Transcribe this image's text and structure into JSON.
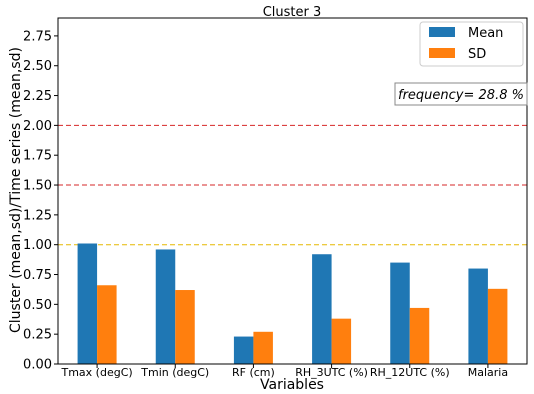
{
  "chart_data": {
    "type": "bar",
    "title": "Cluster 3",
    "xlabel": "Variables",
    "ylabel": "Cluster (mean,sd)/Time series (mean,sd)",
    "categories": [
      "Tmax (degC)",
      "Tmin (degC)",
      "RF (cm)",
      "RH_3UTC (%)",
      "RH_12UTC (%)",
      "Malaria"
    ],
    "series": [
      {
        "name": "Mean",
        "color": "#1f77b4",
        "values": [
          1.01,
          0.96,
          0.23,
          0.92,
          0.85,
          0.8
        ]
      },
      {
        "name": "SD",
        "color": "#ff7f0e",
        "values": [
          0.66,
          0.62,
          0.27,
          0.38,
          0.47,
          0.63
        ]
      }
    ],
    "ylim": [
      0,
      2.9
    ],
    "yticks": [
      "0.00",
      "0.25",
      "0.50",
      "0.75",
      "1.00",
      "1.25",
      "1.50",
      "1.75",
      "2.00",
      "2.25",
      "2.50",
      "2.75"
    ],
    "reference_lines": [
      {
        "value": 2.0,
        "color": "#d62728",
        "style": "dashed"
      },
      {
        "value": 1.5,
        "color": "#d62728",
        "style": "dashed"
      },
      {
        "value": 1.0,
        "color": "#e6b800",
        "style": "dashed"
      }
    ],
    "annotation": "frequency= 28.8 %",
    "legend_position": "top-right",
    "grid": false
  }
}
